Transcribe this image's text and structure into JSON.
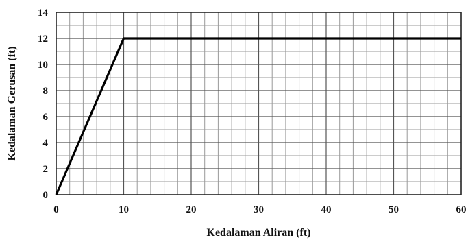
{
  "chart_data": {
    "type": "line",
    "title": "",
    "xlabel": "Kedalaman Aliran (ft)",
    "ylabel": "Kedalaman Gerusan (ft)",
    "xlim": [
      0,
      60
    ],
    "ylim": [
      0,
      14
    ],
    "x_ticks": [
      0,
      10,
      20,
      30,
      40,
      50,
      60
    ],
    "y_ticks": [
      0,
      2,
      4,
      6,
      8,
      10,
      12,
      14
    ],
    "x_tick_labels": [
      "0",
      "10",
      "20",
      "30",
      "40",
      "50",
      "60"
    ],
    "y_tick_labels": [
      "0",
      "2",
      "4",
      "6",
      "8",
      "10",
      "12",
      "14"
    ],
    "grid": true,
    "minor_grid_x_step": 2,
    "minor_grid_y_step": 1,
    "series": [
      {
        "x": [
          0,
          10,
          60
        ],
        "y": [
          0,
          12,
          12
        ],
        "color": "#000000"
      }
    ]
  }
}
